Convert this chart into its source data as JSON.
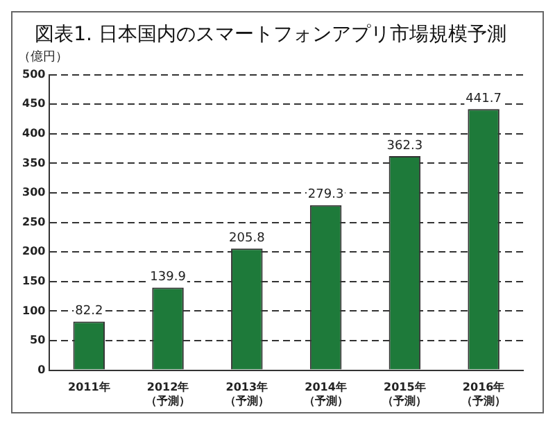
{
  "chart_data": {
    "type": "bar",
    "title": "図表1. 日本国内のスマートフォンアプリ市場規模予測",
    "ylabel": "（億円）",
    "categories": [
      "2011年",
      "2012年（予測）",
      "2013年（予測）",
      "2014年（予測）",
      "2015年（予測）",
      "2016年（予測）"
    ],
    "values": [
      82.2,
      139.9,
      205.8,
      279.3,
      362.3,
      441.7
    ],
    "color": "#1e7a3a",
    "ylim": [
      0,
      500
    ],
    "yticks": [
      0,
      50,
      100,
      150,
      200,
      250,
      300,
      350,
      400,
      450,
      500
    ],
    "grid": "y",
    "data_labels": true,
    "legend": false
  }
}
